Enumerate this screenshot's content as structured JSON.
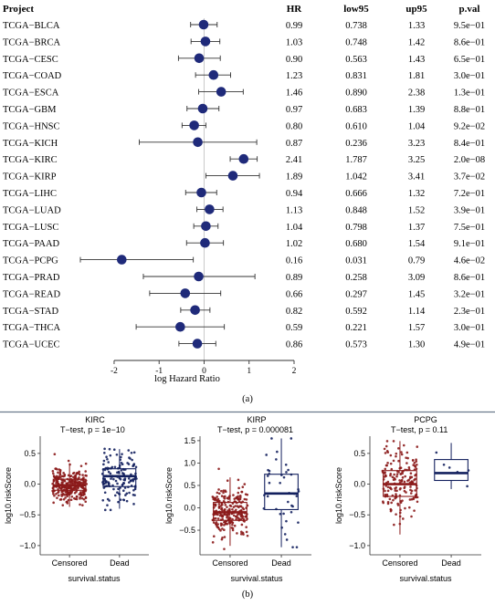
{
  "panel_a_label": "(a)",
  "panel_b_label": "(b)",
  "chart_data": [
    {
      "type": "forest",
      "columns": [
        "Project",
        "HR",
        "low95",
        "up95",
        "p.val"
      ],
      "xlabel": "log Hazard Ratio",
      "xlim": [
        -2.75,
        2.0
      ],
      "xticks": [
        -2,
        -1,
        0,
        1,
        2
      ],
      "marker_color": "#1f2a7a",
      "rows": [
        {
          "project": "TCGA−BLCA",
          "hr": "0.99",
          "low95": "0.738",
          "up95": "1.33",
          "pval": "9.5e−01",
          "est": -0.01,
          "lo": -0.3,
          "hi": 0.29
        },
        {
          "project": "TCGA−BRCA",
          "hr": "1.03",
          "low95": "0.748",
          "up95": "1.42",
          "pval": "8.6e−01",
          "est": 0.03,
          "lo": -0.29,
          "hi": 0.35
        },
        {
          "project": "TCGA−CESC",
          "hr": "0.90",
          "low95": "0.563",
          "up95": "1.43",
          "pval": "6.5e−01",
          "est": -0.11,
          "lo": -0.57,
          "hi": 0.36
        },
        {
          "project": "TCGA−COAD",
          "hr": "1.23",
          "low95": "0.831",
          "up95": "1.81",
          "pval": "3.0e−01",
          "est": 0.21,
          "lo": -0.19,
          "hi": 0.59
        },
        {
          "project": "TCGA−ESCA",
          "hr": "1.46",
          "low95": "0.890",
          "up95": "2.38",
          "pval": "1.3e−01",
          "est": 0.38,
          "lo": -0.12,
          "hi": 0.87
        },
        {
          "project": "TCGA−GBM",
          "hr": "0.97",
          "low95": "0.683",
          "up95": "1.39",
          "pval": "8.8e−01",
          "est": -0.03,
          "lo": -0.38,
          "hi": 0.33
        },
        {
          "project": "TCGA−HNSC",
          "hr": "0.80",
          "low95": "0.610",
          "up95": "1.04",
          "pval": "9.2e−02",
          "est": -0.22,
          "lo": -0.49,
          "hi": 0.04
        },
        {
          "project": "TCGA−KICH",
          "hr": "0.87",
          "low95": "0.236",
          "up95": "3.23",
          "pval": "8.4e−01",
          "est": -0.14,
          "lo": -1.44,
          "hi": 1.17
        },
        {
          "project": "TCGA−KIRC",
          "hr": "2.41",
          "low95": "1.787",
          "up95": "3.25",
          "pval": "2.0e−08",
          "est": 0.88,
          "lo": 0.58,
          "hi": 1.18
        },
        {
          "project": "TCGA−KIRP",
          "hr": "1.89",
          "low95": "1.042",
          "up95": "3.41",
          "pval": "3.7e−02",
          "est": 0.64,
          "lo": 0.04,
          "hi": 1.23
        },
        {
          "project": "TCGA−LIHC",
          "hr": "0.94",
          "low95": "0.666",
          "up95": "1.32",
          "pval": "7.2e−01",
          "est": -0.06,
          "lo": -0.41,
          "hi": 0.28
        },
        {
          "project": "TCGA−LUAD",
          "hr": "1.13",
          "low95": "0.848",
          "up95": "1.52",
          "pval": "3.9e−01",
          "est": 0.12,
          "lo": -0.16,
          "hi": 0.42
        },
        {
          "project": "TCGA−LUSC",
          "hr": "1.04",
          "low95": "0.798",
          "up95": "1.37",
          "pval": "7.5e−01",
          "est": 0.04,
          "lo": -0.23,
          "hi": 0.31
        },
        {
          "project": "TCGA−PAAD",
          "hr": "1.02",
          "low95": "0.680",
          "up95": "1.54",
          "pval": "9.1e−01",
          "est": 0.02,
          "lo": -0.39,
          "hi": 0.43
        },
        {
          "project": "TCGA−PCPG",
          "hr": "0.16",
          "low95": "0.031",
          "up95": "0.79",
          "pval": "4.6e−02",
          "est": -1.83,
          "lo": -2.75,
          "hi": -0.24
        },
        {
          "project": "TCGA−PRAD",
          "hr": "0.89",
          "low95": "0.258",
          "up95": "3.09",
          "pval": "8.6e−01",
          "est": -0.12,
          "lo": -1.35,
          "hi": 1.13
        },
        {
          "project": "TCGA−READ",
          "hr": "0.66",
          "low95": "0.297",
          "up95": "1.45",
          "pval": "3.2e−01",
          "est": -0.42,
          "lo": -1.21,
          "hi": 0.37
        },
        {
          "project": "TCGA−STAD",
          "hr": "0.82",
          "low95": "0.592",
          "up95": "1.14",
          "pval": "2.3e−01",
          "est": -0.2,
          "lo": -0.52,
          "hi": 0.13
        },
        {
          "project": "TCGA−THCA",
          "hr": "0.59",
          "low95": "0.221",
          "up95": "1.57",
          "pval": "3.0e−01",
          "est": -0.53,
          "lo": -1.51,
          "hi": 0.45
        },
        {
          "project": "TCGA−UCEC",
          "hr": "0.86",
          "low95": "0.573",
          "up95": "1.30",
          "pval": "4.9e−01",
          "est": -0.15,
          "lo": -0.56,
          "hi": 0.26
        }
      ]
    },
    {
      "type": "box",
      "title": "KIRC",
      "subtitle": "T−test, p = 1e−10",
      "xlabel": "survival.status",
      "ylabel": "log10.riskScore",
      "ylim": [
        -1.15,
        0.78
      ],
      "yticks": [
        -1.0,
        -0.5,
        0.0,
        0.5
      ],
      "ytick_labels": [
        "−1.0",
        "−0.5",
        "0.0",
        "0.5"
      ],
      "groups": [
        {
          "name": "Censored",
          "color": "#8b1a1a",
          "n": 300,
          "q1": -0.1,
          "median": -0.02,
          "q3": 0.08,
          "wlo": -0.37,
          "whi": 0.34,
          "min": -1.08,
          "max": 0.55
        },
        {
          "name": "Dead",
          "color": "#13205e",
          "n": 140,
          "q1": -0.04,
          "median": 0.13,
          "q3": 0.25,
          "wlo": -0.4,
          "whi": 0.57,
          "min": -0.42,
          "max": 0.7
        }
      ]
    },
    {
      "type": "box",
      "title": "KIRP",
      "subtitle": "T−test, p = 0.000081",
      "xlabel": "survival.status",
      "ylabel": "log10.riskScore",
      "ylim": [
        -1.05,
        1.6
      ],
      "yticks": [
        -0.5,
        0.0,
        0.5,
        1.0,
        1.5
      ],
      "ytick_labels": [
        "−0.5",
        "0.0",
        "0.5",
        "1.0",
        "1.5"
      ],
      "groups": [
        {
          "name": "Censored",
          "color": "#8b1a1a",
          "n": 230,
          "q1": -0.28,
          "median": -0.1,
          "q3": 0.12,
          "wlo": -0.85,
          "whi": 0.68,
          "min": -0.92,
          "max": 1.3
        },
        {
          "name": "Dead",
          "color": "#13205e",
          "n": 40,
          "q1": -0.04,
          "median": 0.32,
          "q3": 0.75,
          "wlo": -0.88,
          "whi": 1.55,
          "min": -0.88,
          "max": 1.55
        }
      ]
    },
    {
      "type": "box",
      "title": "PCPG",
      "subtitle": "T−test, p = 0.11",
      "xlabel": "survival.status",
      "ylabel": "log10.riskScore",
      "ylim": [
        -1.15,
        0.78
      ],
      "yticks": [
        -1.0,
        -0.5,
        0.0,
        0.5
      ],
      "ytick_labels": [
        "−1.0",
        "−0.5",
        "0.0",
        "0.5"
      ],
      "groups": [
        {
          "name": "Censored",
          "color": "#8b1a1a",
          "n": 170,
          "q1": -0.2,
          "median": 0.0,
          "q3": 0.22,
          "wlo": -0.82,
          "whi": 0.7,
          "min": -1.05,
          "max": 0.7
        },
        {
          "name": "Dead",
          "color": "#13205e",
          "n": 6,
          "q1": 0.06,
          "median": 0.18,
          "q3": 0.4,
          "wlo": -0.08,
          "whi": 0.67,
          "min": -0.08,
          "max": 0.67
        }
      ]
    }
  ]
}
